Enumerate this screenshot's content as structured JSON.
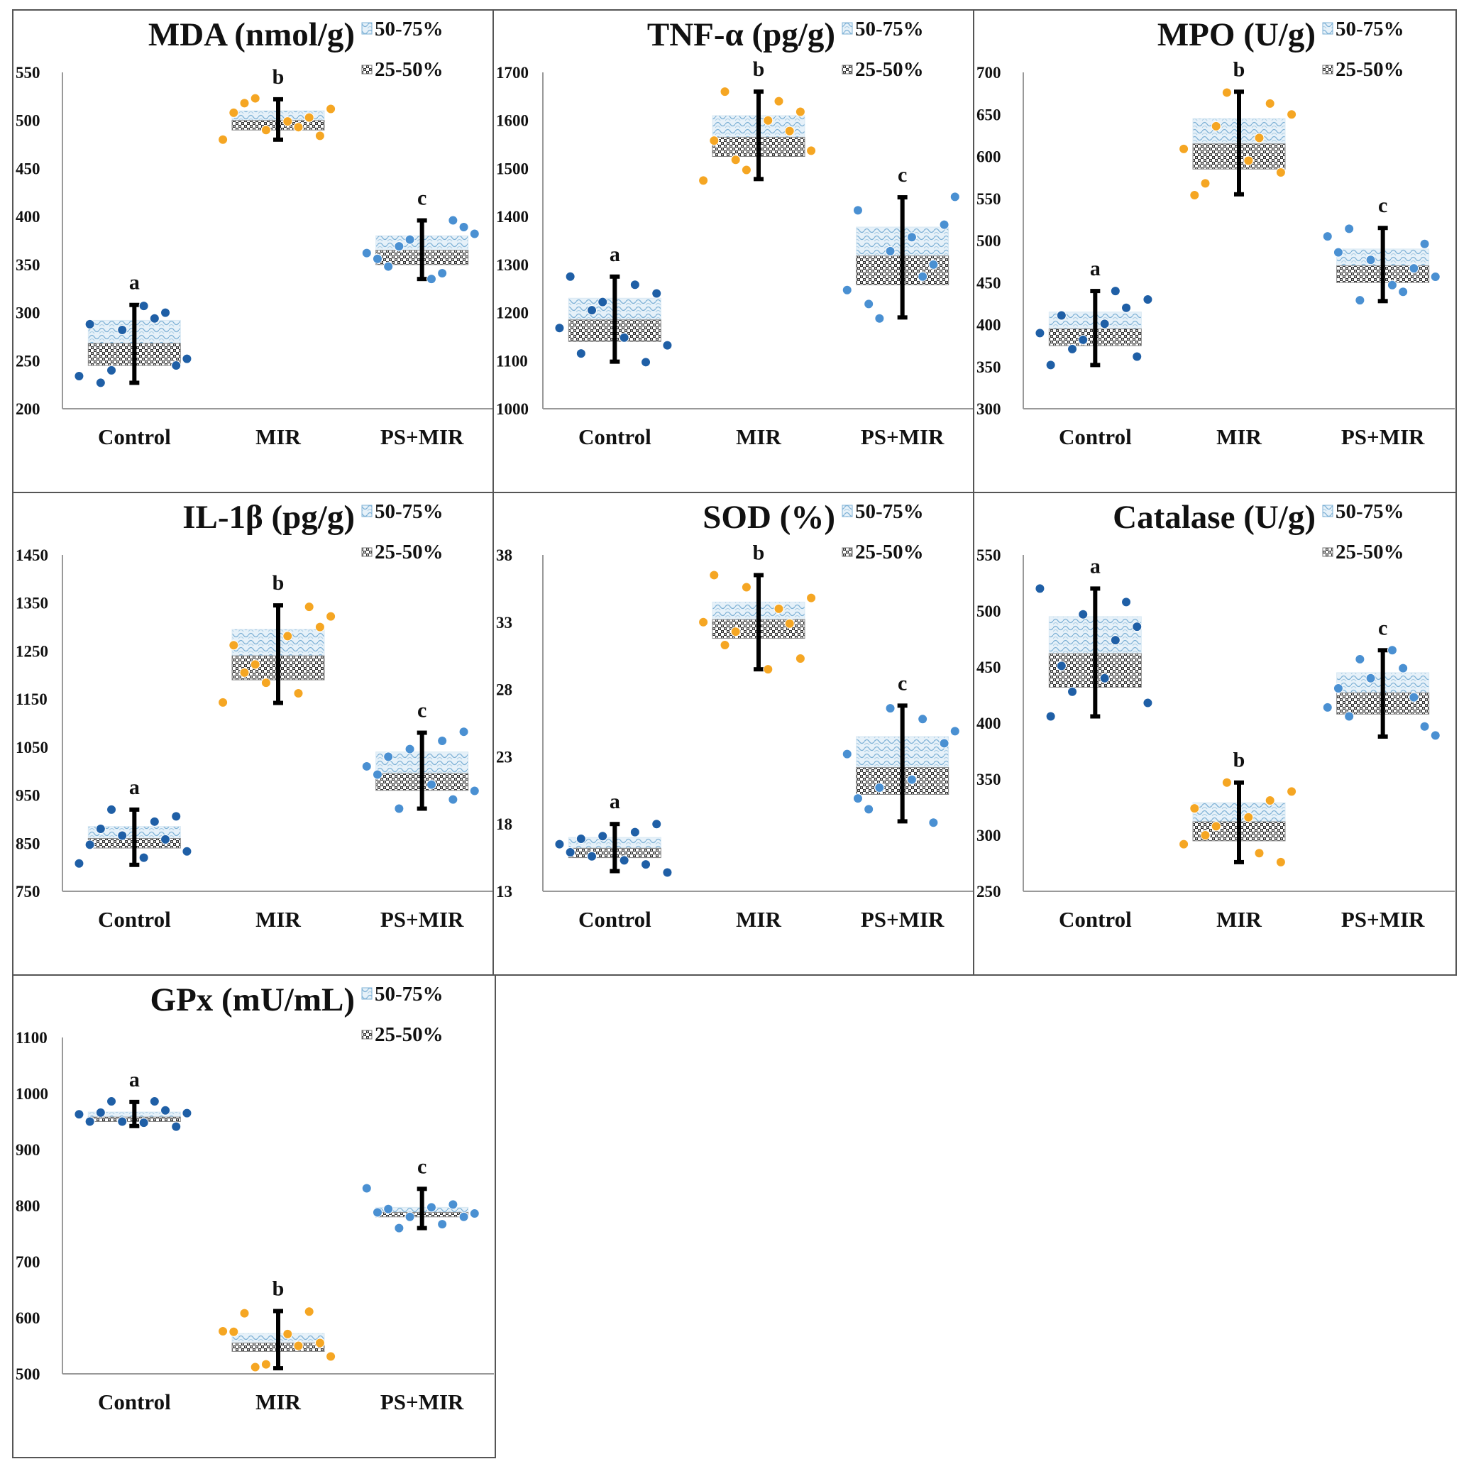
{
  "legend": {
    "upper": "50-75%",
    "lower": "25-50%"
  },
  "colors": {
    "control": "#1f5fa6",
    "mir": "#f5a623",
    "psmir": "#4a90d2"
  },
  "chart_data": [
    {
      "type": "box",
      "title": "MDA (nmol/g)",
      "categories": [
        "Control",
        "MIR",
        "PS+MIR"
      ],
      "ylim": [
        200,
        550
      ],
      "yticks": [
        200,
        250,
        300,
        350,
        400,
        450,
        500,
        550
      ],
      "boxes": [
        {
          "q1": 245,
          "median": 268,
          "q3": 292,
          "min": 227,
          "max": 308,
          "sig": "a"
        },
        {
          "q1": 490,
          "median": 500,
          "q3": 510,
          "min": 480,
          "max": 522,
          "sig": "b"
        },
        {
          "q1": 350,
          "median": 365,
          "q3": 380,
          "min": 335,
          "max": 396,
          "sig": "c"
        }
      ],
      "points": [
        [
          [
            -0.82,
            234
          ],
          [
            -0.66,
            288
          ],
          [
            -0.5,
            227
          ],
          [
            -0.34,
            240
          ],
          [
            -0.18,
            282
          ],
          [
            0.14,
            307
          ],
          [
            0.3,
            294
          ],
          [
            0.46,
            300
          ],
          [
            0.62,
            245
          ],
          [
            0.78,
            252
          ]
        ],
        [
          [
            -0.82,
            480
          ],
          [
            -0.66,
            508
          ],
          [
            -0.5,
            518
          ],
          [
            -0.34,
            523
          ],
          [
            -0.18,
            490
          ],
          [
            0.14,
            499
          ],
          [
            0.3,
            493
          ],
          [
            0.46,
            503
          ],
          [
            0.62,
            484
          ],
          [
            0.78,
            512
          ]
        ],
        [
          [
            -0.82,
            362
          ],
          [
            -0.66,
            356
          ],
          [
            -0.5,
            348
          ],
          [
            -0.34,
            369
          ],
          [
            -0.18,
            376
          ],
          [
            0.14,
            335
          ],
          [
            0.3,
            341
          ],
          [
            0.46,
            396
          ],
          [
            0.62,
            389
          ],
          [
            0.78,
            382
          ]
        ]
      ]
    },
    {
      "type": "box",
      "title": "TNF-α (pg/g)",
      "categories": [
        "Control",
        "MIR",
        "PS+MIR"
      ],
      "ylim": [
        1000,
        1700
      ],
      "yticks": [
        1000,
        1100,
        1200,
        1300,
        1400,
        1500,
        1600,
        1700
      ],
      "boxes": [
        {
          "q1": 1140,
          "median": 1185,
          "q3": 1230,
          "min": 1098,
          "max": 1275,
          "sig": "a"
        },
        {
          "q1": 1525,
          "median": 1565,
          "q3": 1610,
          "min": 1478,
          "max": 1660,
          "sig": "b"
        },
        {
          "q1": 1258,
          "median": 1318,
          "q3": 1378,
          "min": 1190,
          "max": 1440,
          "sig": "c"
        }
      ],
      "points": [
        [
          [
            -0.82,
            1168
          ],
          [
            -0.66,
            1275
          ],
          [
            -0.5,
            1115
          ],
          [
            -0.34,
            1205
          ],
          [
            -0.18,
            1222
          ],
          [
            0.14,
            1148
          ],
          [
            0.3,
            1258
          ],
          [
            0.46,
            1097
          ],
          [
            0.62,
            1240
          ],
          [
            0.78,
            1132
          ]
        ],
        [
          [
            -0.82,
            1475
          ],
          [
            -0.66,
            1558
          ],
          [
            -0.5,
            1660
          ],
          [
            -0.34,
            1518
          ],
          [
            -0.18,
            1497
          ],
          [
            0.14,
            1600
          ],
          [
            0.3,
            1640
          ],
          [
            0.46,
            1578
          ],
          [
            0.62,
            1618
          ],
          [
            0.78,
            1537
          ]
        ],
        [
          [
            -0.82,
            1247
          ],
          [
            -0.66,
            1413
          ],
          [
            -0.5,
            1218
          ],
          [
            -0.34,
            1188
          ],
          [
            -0.18,
            1328
          ],
          [
            0.14,
            1357
          ],
          [
            0.3,
            1275
          ],
          [
            0.46,
            1300
          ],
          [
            0.62,
            1383
          ],
          [
            0.78,
            1441
          ]
        ]
      ]
    },
    {
      "type": "box",
      "title": "MPO (U/g)",
      "categories": [
        "Control",
        "MIR",
        "PS+MIR"
      ],
      "ylim": [
        300,
        700
      ],
      "yticks": [
        300,
        350,
        400,
        450,
        500,
        550,
        600,
        650,
        700
      ],
      "boxes": [
        {
          "q1": 375,
          "median": 395,
          "q3": 415,
          "min": 352,
          "max": 440,
          "sig": "a"
        },
        {
          "q1": 585,
          "median": 615,
          "q3": 645,
          "min": 555,
          "max": 677,
          "sig": "b"
        },
        {
          "q1": 450,
          "median": 470,
          "q3": 490,
          "min": 428,
          "max": 515,
          "sig": "c"
        }
      ],
      "points": [
        [
          [
            -0.82,
            390
          ],
          [
            -0.66,
            352
          ],
          [
            -0.5,
            411
          ],
          [
            -0.34,
            371
          ],
          [
            -0.18,
            382
          ],
          [
            0.14,
            401
          ],
          [
            0.3,
            440
          ],
          [
            0.46,
            420
          ],
          [
            0.62,
            362
          ],
          [
            0.78,
            430
          ]
        ],
        [
          [
            -0.82,
            609
          ],
          [
            -0.66,
            554
          ],
          [
            -0.5,
            568
          ],
          [
            -0.34,
            636
          ],
          [
            -0.18,
            676
          ],
          [
            0.14,
            595
          ],
          [
            0.3,
            622
          ],
          [
            0.46,
            663
          ],
          [
            0.62,
            581
          ],
          [
            0.78,
            650
          ]
        ],
        [
          [
            -0.82,
            505
          ],
          [
            -0.66,
            486
          ],
          [
            -0.5,
            514
          ],
          [
            -0.34,
            429
          ],
          [
            -0.18,
            477
          ],
          [
            0.14,
            447
          ],
          [
            0.3,
            439
          ],
          [
            0.46,
            467
          ],
          [
            0.62,
            496
          ],
          [
            0.78,
            457
          ]
        ]
      ]
    },
    {
      "type": "box",
      "title": "IL-1β (pg/g)",
      "categories": [
        "Control",
        "MIR",
        "PS+MIR"
      ],
      "ylim": [
        750,
        1450
      ],
      "yticks": [
        750,
        850,
        950,
        1050,
        1150,
        1250,
        1350,
        1450
      ],
      "boxes": [
        {
          "q1": 840,
          "median": 860,
          "q3": 885,
          "min": 805,
          "max": 920,
          "sig": "a"
        },
        {
          "q1": 1190,
          "median": 1240,
          "q3": 1295,
          "min": 1142,
          "max": 1345,
          "sig": "b"
        },
        {
          "q1": 960,
          "median": 995,
          "q3": 1040,
          "min": 922,
          "max": 1080,
          "sig": "c"
        }
      ],
      "points": [
        [
          [
            -0.82,
            808
          ],
          [
            -0.66,
            847
          ],
          [
            -0.5,
            880
          ],
          [
            -0.34,
            920
          ],
          [
            -0.18,
            866
          ],
          [
            0.14,
            820
          ],
          [
            0.3,
            895
          ],
          [
            0.46,
            858
          ],
          [
            0.62,
            906
          ],
          [
            0.78,
            833
          ]
        ],
        [
          [
            -0.82,
            1143
          ],
          [
            -0.66,
            1262
          ],
          [
            -0.5,
            1205
          ],
          [
            -0.34,
            1222
          ],
          [
            -0.18,
            1184
          ],
          [
            0.14,
            1281
          ],
          [
            0.3,
            1162
          ],
          [
            0.46,
            1342
          ],
          [
            0.62,
            1300
          ],
          [
            0.78,
            1322
          ]
        ],
        [
          [
            -0.82,
            1010
          ],
          [
            -0.66,
            993
          ],
          [
            -0.5,
            1030
          ],
          [
            -0.34,
            922
          ],
          [
            -0.18,
            1046
          ],
          [
            0.14,
            972
          ],
          [
            0.3,
            1063
          ],
          [
            0.46,
            941
          ],
          [
            0.62,
            1082
          ],
          [
            0.78,
            959
          ]
        ]
      ]
    },
    {
      "type": "box",
      "title": "SOD (%)",
      "categories": [
        "Control",
        "MIR",
        "PS+MIR"
      ],
      "ylim": [
        13,
        38
      ],
      "yticks": [
        13,
        18,
        23,
        28,
        33,
        38
      ],
      "boxes": [
        {
          "q1": 15.5,
          "median": 16.2,
          "q3": 17.0,
          "min": 14.5,
          "max": 18.0,
          "sig": "a"
        },
        {
          "q1": 31.8,
          "median": 33.2,
          "q3": 34.5,
          "min": 29.5,
          "max": 36.5,
          "sig": "b"
        },
        {
          "q1": 20.2,
          "median": 22.2,
          "q3": 24.5,
          "min": 18.2,
          "max": 26.8,
          "sig": "c"
        }
      ],
      "points": [
        [
          [
            -0.82,
            16.5
          ],
          [
            -0.66,
            15.9
          ],
          [
            -0.5,
            16.9
          ],
          [
            -0.34,
            15.6
          ],
          [
            -0.18,
            17.1
          ],
          [
            0.14,
            15.3
          ],
          [
            0.3,
            17.4
          ],
          [
            0.46,
            15.0
          ],
          [
            0.62,
            18.0
          ],
          [
            0.78,
            14.4
          ]
        ],
        [
          [
            -0.82,
            33.0
          ],
          [
            -0.66,
            36.5
          ],
          [
            -0.5,
            31.3
          ],
          [
            -0.34,
            32.3
          ],
          [
            -0.18,
            35.6
          ],
          [
            0.14,
            29.5
          ],
          [
            0.3,
            34.0
          ],
          [
            0.46,
            32.9
          ],
          [
            0.62,
            30.3
          ],
          [
            0.78,
            34.8
          ]
        ],
        [
          [
            -0.82,
            23.2
          ],
          [
            -0.66,
            19.9
          ],
          [
            -0.5,
            19.1
          ],
          [
            -0.34,
            20.7
          ],
          [
            -0.18,
            26.6
          ],
          [
            0.14,
            21.3
          ],
          [
            0.3,
            25.8
          ],
          [
            0.46,
            18.1
          ],
          [
            0.62,
            24.0
          ],
          [
            0.78,
            24.9
          ]
        ]
      ]
    },
    {
      "type": "box",
      "title": "Catalase (U/g)",
      "categories": [
        "Control",
        "MIR",
        "PS+MIR"
      ],
      "ylim": [
        250,
        550
      ],
      "yticks": [
        250,
        300,
        350,
        400,
        450,
        500,
        550
      ],
      "boxes": [
        {
          "q1": 432,
          "median": 462,
          "q3": 495,
          "min": 406,
          "max": 520,
          "sig": "a"
        },
        {
          "q1": 295,
          "median": 312,
          "q3": 329,
          "min": 276,
          "max": 347,
          "sig": "b"
        },
        {
          "q1": 408,
          "median": 427,
          "q3": 445,
          "min": 388,
          "max": 465,
          "sig": "c"
        }
      ],
      "points": [
        [
          [
            -0.82,
            520
          ],
          [
            -0.66,
            406
          ],
          [
            -0.5,
            451
          ],
          [
            -0.34,
            428
          ],
          [
            -0.18,
            497
          ],
          [
            0.14,
            440
          ],
          [
            0.3,
            474
          ],
          [
            0.46,
            508
          ],
          [
            0.62,
            486
          ],
          [
            0.78,
            418
          ]
        ],
        [
          [
            -0.82,
            292
          ],
          [
            -0.66,
            324
          ],
          [
            -0.5,
            300
          ],
          [
            -0.34,
            308
          ],
          [
            -0.18,
            347
          ],
          [
            0.14,
            316
          ],
          [
            0.3,
            284
          ],
          [
            0.46,
            331
          ],
          [
            0.62,
            276
          ],
          [
            0.78,
            339
          ]
        ],
        [
          [
            -0.82,
            414
          ],
          [
            -0.66,
            431
          ],
          [
            -0.5,
            406
          ],
          [
            -0.34,
            457
          ],
          [
            -0.18,
            440
          ],
          [
            0.14,
            465
          ],
          [
            0.3,
            449
          ],
          [
            0.46,
            423
          ],
          [
            0.62,
            397
          ],
          [
            0.78,
            389
          ]
        ]
      ]
    },
    {
      "type": "box",
      "title": "GPx (mU/mL)",
      "categories": [
        "Control",
        "MIR",
        "PS+MIR"
      ],
      "ylim": [
        500,
        1100
      ],
      "yticks": [
        500,
        600,
        700,
        800,
        900,
        1000,
        1100
      ],
      "boxes": [
        {
          "q1": 950,
          "median": 958,
          "q3": 967,
          "min": 942,
          "max": 985,
          "sig": "a"
        },
        {
          "q1": 540,
          "median": 555,
          "q3": 572,
          "min": 510,
          "max": 612,
          "sig": "b"
        },
        {
          "q1": 780,
          "median": 788,
          "q3": 797,
          "min": 760,
          "max": 830,
          "sig": "c"
        }
      ],
      "points": [
        [
          [
            -0.82,
            963
          ],
          [
            -0.66,
            950
          ],
          [
            -0.5,
            966
          ],
          [
            -0.34,
            986
          ],
          [
            -0.18,
            950
          ],
          [
            0.14,
            948
          ],
          [
            0.3,
            986
          ],
          [
            0.46,
            970
          ],
          [
            0.62,
            941
          ],
          [
            0.78,
            965
          ]
        ],
        [
          [
            -0.82,
            576
          ],
          [
            -0.66,
            575
          ],
          [
            -0.5,
            608
          ],
          [
            -0.34,
            512
          ],
          [
            -0.18,
            517
          ],
          [
            0.14,
            571
          ],
          [
            0.3,
            550
          ],
          [
            0.46,
            611
          ],
          [
            0.62,
            555
          ],
          [
            0.78,
            531
          ]
        ],
        [
          [
            -0.82,
            831
          ],
          [
            -0.66,
            788
          ],
          [
            -0.5,
            794
          ],
          [
            -0.34,
            760
          ],
          [
            -0.18,
            780
          ],
          [
            0.14,
            797
          ],
          [
            0.3,
            767
          ],
          [
            0.46,
            802
          ],
          [
            0.62,
            780
          ],
          [
            0.78,
            786
          ]
        ]
      ]
    }
  ]
}
